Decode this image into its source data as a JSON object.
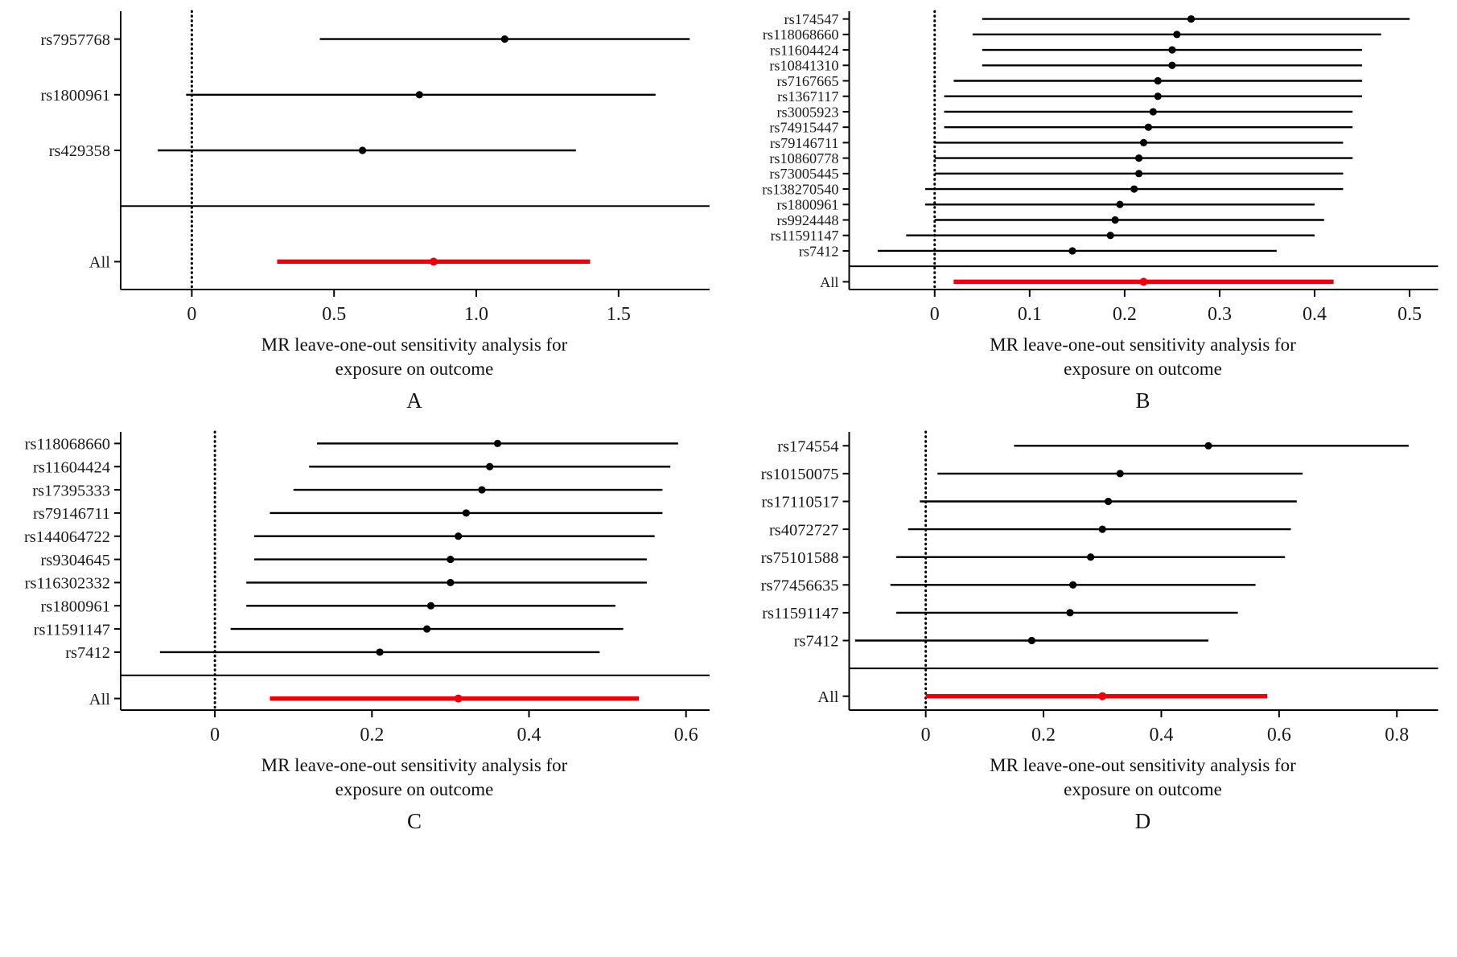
{
  "colors": {
    "axis": "#000000",
    "ci_line": "#000000",
    "all_line": "#e8000d",
    "text": "#1a1a1a"
  },
  "chart_data": [
    {
      "type": "forest",
      "panel_label": "A",
      "xlabel_line1": "MR leave-one-out sensitivity analysis for",
      "xlabel_line2": "exposure on outcome",
      "xlim": [
        -0.25,
        1.82
      ],
      "xticks": [
        0,
        0.5,
        1.0,
        1.5
      ],
      "xtick_labels": [
        "0",
        "0.5",
        "1.0",
        "1.5"
      ],
      "all_label": "All",
      "rows": [
        {
          "label": "rs7957768",
          "est": 1.1,
          "lo": 0.45,
          "hi": 1.75
        },
        {
          "label": "rs1800961",
          "est": 0.8,
          "lo": -0.02,
          "hi": 1.63
        },
        {
          "label": "rs429358",
          "est": 0.6,
          "lo": -0.12,
          "hi": 1.35
        }
      ],
      "all": {
        "label": "All",
        "est": 0.85,
        "lo": 0.3,
        "hi": 1.4
      }
    },
    {
      "type": "forest",
      "panel_label": "B",
      "xlabel_line1": "MR leave-one-out sensitivity analysis for",
      "xlabel_line2": "exposure on outcome",
      "xlim": [
        -0.09,
        0.53
      ],
      "xticks": [
        0,
        0.1,
        0.2,
        0.3,
        0.4,
        0.5
      ],
      "xtick_labels": [
        "0",
        "0.1",
        "0.2",
        "0.3",
        "0.4",
        "0.5"
      ],
      "all_label": "All",
      "rows": [
        {
          "label": "rs174547",
          "est": 0.27,
          "lo": 0.05,
          "hi": 0.5
        },
        {
          "label": "rs118068660",
          "est": 0.255,
          "lo": 0.04,
          "hi": 0.47
        },
        {
          "label": "rs11604424",
          "est": 0.25,
          "lo": 0.05,
          "hi": 0.45
        },
        {
          "label": "rs10841310",
          "est": 0.25,
          "lo": 0.05,
          "hi": 0.45
        },
        {
          "label": "rs7167665",
          "est": 0.235,
          "lo": 0.02,
          "hi": 0.45
        },
        {
          "label": "rs1367117",
          "est": 0.235,
          "lo": 0.01,
          "hi": 0.45
        },
        {
          "label": "rs3005923",
          "est": 0.23,
          "lo": 0.01,
          "hi": 0.44
        },
        {
          "label": "rs74915447",
          "est": 0.225,
          "lo": 0.01,
          "hi": 0.44
        },
        {
          "label": "rs79146711",
          "est": 0.22,
          "lo": 0.0,
          "hi": 0.43
        },
        {
          "label": "rs10860778",
          "est": 0.215,
          "lo": 0.0,
          "hi": 0.44
        },
        {
          "label": "rs73005445",
          "est": 0.215,
          "lo": 0.0,
          "hi": 0.43
        },
        {
          "label": "rs138270540",
          "est": 0.21,
          "lo": -0.01,
          "hi": 0.43
        },
        {
          "label": "rs1800961",
          "est": 0.195,
          "lo": -0.01,
          "hi": 0.4
        },
        {
          "label": "rs9924448",
          "est": 0.19,
          "lo": 0.0,
          "hi": 0.41
        },
        {
          "label": "rs11591147",
          "est": 0.185,
          "lo": -0.03,
          "hi": 0.4
        },
        {
          "label": "rs7412",
          "est": 0.145,
          "lo": -0.06,
          "hi": 0.36
        }
      ],
      "all": {
        "label": "All",
        "est": 0.22,
        "lo": 0.02,
        "hi": 0.42
      }
    },
    {
      "type": "forest",
      "panel_label": "C",
      "xlabel_line1": "MR leave-one-out sensitivity analysis for",
      "xlabel_line2": "exposure on outcome",
      "xlim": [
        -0.12,
        0.63
      ],
      "xticks": [
        0,
        0.2,
        0.4,
        0.6
      ],
      "xtick_labels": [
        "0",
        "0.2",
        "0.4",
        "0.6"
      ],
      "all_label": "All",
      "rows": [
        {
          "label": "rs118068660",
          "est": 0.36,
          "lo": 0.13,
          "hi": 0.59
        },
        {
          "label": "rs11604424",
          "est": 0.35,
          "lo": 0.12,
          "hi": 0.58
        },
        {
          "label": "rs17395333",
          "est": 0.34,
          "lo": 0.1,
          "hi": 0.57
        },
        {
          "label": "rs79146711",
          "est": 0.32,
          "lo": 0.07,
          "hi": 0.57
        },
        {
          "label": "rs144064722",
          "est": 0.31,
          "lo": 0.05,
          "hi": 0.56
        },
        {
          "label": "rs9304645",
          "est": 0.3,
          "lo": 0.05,
          "hi": 0.55
        },
        {
          "label": "rs116302332",
          "est": 0.3,
          "lo": 0.04,
          "hi": 0.55
        },
        {
          "label": "rs1800961",
          "est": 0.275,
          "lo": 0.04,
          "hi": 0.51
        },
        {
          "label": "rs11591147",
          "est": 0.27,
          "lo": 0.02,
          "hi": 0.52
        },
        {
          "label": "rs7412",
          "est": 0.21,
          "lo": -0.07,
          "hi": 0.49
        }
      ],
      "all": {
        "label": "All",
        "est": 0.31,
        "lo": 0.07,
        "hi": 0.54
      }
    },
    {
      "type": "forest",
      "panel_label": "D",
      "xlabel_line1": "MR leave-one-out sensitivity analysis for",
      "xlabel_line2": "exposure on outcome",
      "xlim": [
        -0.13,
        0.87
      ],
      "xticks": [
        0,
        0.2,
        0.4,
        0.6,
        0.8
      ],
      "xtick_labels": [
        "0",
        "0.2",
        "0.4",
        "0.6",
        "0.8"
      ],
      "all_label": "All",
      "rows": [
        {
          "label": "rs174554",
          "est": 0.48,
          "lo": 0.15,
          "hi": 0.82
        },
        {
          "label": "rs10150075",
          "est": 0.33,
          "lo": 0.02,
          "hi": 0.64
        },
        {
          "label": "rs17110517",
          "est": 0.31,
          "lo": -0.01,
          "hi": 0.63
        },
        {
          "label": "rs4072727",
          "est": 0.3,
          "lo": -0.03,
          "hi": 0.62
        },
        {
          "label": "rs75101588",
          "est": 0.28,
          "lo": -0.05,
          "hi": 0.61
        },
        {
          "label": "rs77456635",
          "est": 0.25,
          "lo": -0.06,
          "hi": 0.56
        },
        {
          "label": "rs11591147",
          "est": 0.245,
          "lo": -0.05,
          "hi": 0.53
        },
        {
          "label": "rs7412",
          "est": 0.18,
          "lo": -0.12,
          "hi": 0.48
        }
      ],
      "all": {
        "label": "All",
        "est": 0.3,
        "lo": 0.0,
        "hi": 0.58
      }
    }
  ]
}
